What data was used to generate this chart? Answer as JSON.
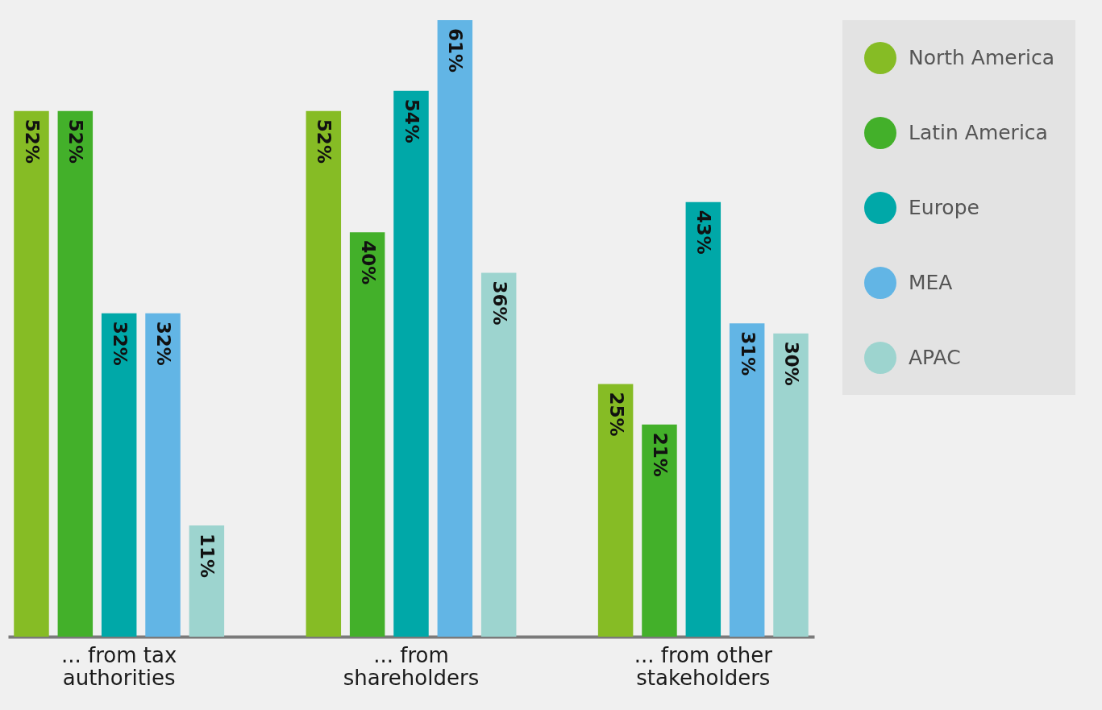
{
  "chart_data": {
    "type": "bar",
    "categories": [
      "... from tax authorities",
      "... from shareholders",
      "... from other stakeholders"
    ],
    "series": [
      {
        "name": "North America",
        "color": "#86bc25",
        "values": [
          52,
          52,
          25
        ],
        "value_labels": [
          "52%",
          "52%",
          "25%"
        ]
      },
      {
        "name": "Latin America",
        "color": "#43b02a",
        "values": [
          52,
          40,
          21
        ],
        "value_labels": [
          "52%",
          "40%",
          "21%"
        ]
      },
      {
        "name": "Europe",
        "color": "#00a8a8",
        "values": [
          32,
          54,
          43
        ],
        "value_labels": [
          "32%",
          "54%",
          "43%"
        ]
      },
      {
        "name": "MEA",
        "color": "#62b5e5",
        "values": [
          32,
          61,
          31
        ],
        "value_labels": [
          "32%",
          "61%",
          "31%"
        ]
      },
      {
        "name": "APAC",
        "color": "#9dd4cf",
        "values": [
          11,
          36,
          30
        ],
        "value_labels": [
          "11%",
          "36%",
          "30%"
        ]
      }
    ],
    "legend": "right",
    "grid": false
  }
}
